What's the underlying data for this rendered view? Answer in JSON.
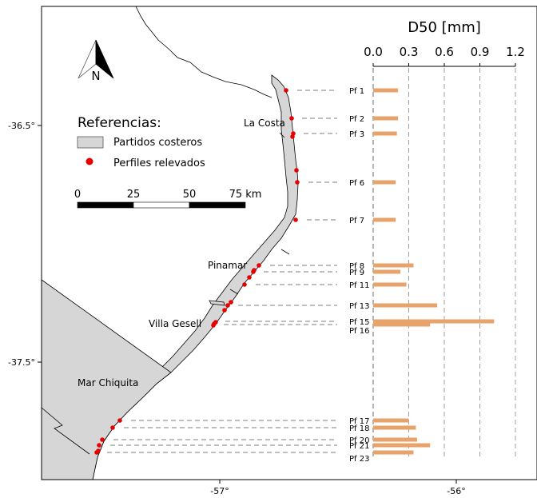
{
  "axes": {
    "lat_ticks": [
      {
        "label": "-36.5°",
        "value": -36.5
      },
      {
        "label": "-37.5°",
        "value": -37.5
      }
    ],
    "lon_ticks": [
      {
        "label": "-57°",
        "value": -57
      },
      {
        "label": "-56°",
        "value": -56
      }
    ]
  },
  "north_arrow": {
    "label": "N"
  },
  "legend": {
    "title": "Referencias:",
    "items": [
      {
        "label": "Partidos costeros",
        "color": "#d3d3d3"
      },
      {
        "label": "Perfiles relevados",
        "color": "#e60000"
      }
    ]
  },
  "scale_bar": {
    "labels": [
      "0",
      "25",
      "50",
      "75 km"
    ]
  },
  "places": [
    {
      "name": "La Costa"
    },
    {
      "name": "Pinamar"
    },
    {
      "name": "Villa Gesell"
    },
    {
      "name": "Mar Chiquita"
    }
  ],
  "chart_data": {
    "type": "bar",
    "title": "D50 [mm]",
    "x_ticks": [
      "0.0",
      "0.3",
      "0.6",
      "0.9",
      "1.2"
    ],
    "xlim": [
      0,
      1.2
    ],
    "grid": true,
    "bar_color": "#e8a36a",
    "profiles": [
      {
        "label": "Pf 1",
        "value": 0.21
      },
      {
        "label": "Pf 2",
        "value": 0.21
      },
      {
        "label": "Pf 3",
        "value": 0.2
      },
      {
        "label": "Pf 6",
        "value": 0.19
      },
      {
        "label": "Pf 7",
        "value": 0.19
      },
      {
        "label": "Pf 8",
        "value": 0.34
      },
      {
        "label": "Pf 9",
        "value": 0.23
      },
      {
        "label": "Pf 11",
        "value": 0.28
      },
      {
        "label": "Pf 13",
        "value": 0.54
      },
      {
        "label": "Pf 15",
        "value": 1.02
      },
      {
        "label": "Pf 16",
        "value": 0.48
      },
      {
        "label": "Pf 17",
        "value": 0.3
      },
      {
        "label": "Pf 18",
        "value": 0.36
      },
      {
        "label": "Pf 20",
        "value": 0.37
      },
      {
        "label": "Pf 21",
        "value": 0.48
      },
      {
        "label": "Pf 23",
        "value": 0.34
      }
    ]
  }
}
